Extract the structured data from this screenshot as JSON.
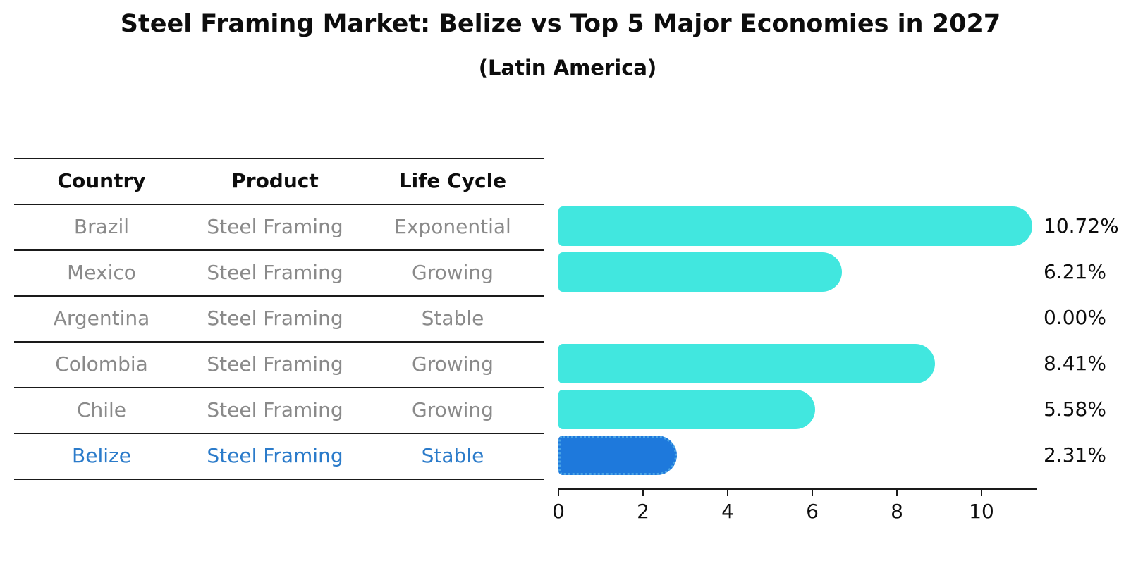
{
  "title": "Steel Framing Market: Belize vs Top 5 Major Economies in 2027",
  "subtitle": "(Latin America)",
  "table": {
    "headers": [
      "Country",
      "Product",
      "Life Cycle"
    ],
    "rows": [
      {
        "country": "Brazil",
        "product": "Steel Framing",
        "life_cycle": "Exponential",
        "highlight": false
      },
      {
        "country": "Mexico",
        "product": "Steel Framing",
        "life_cycle": "Growing",
        "highlight": false
      },
      {
        "country": "Argentina",
        "product": "Steel Framing",
        "life_cycle": "Stable",
        "highlight": false
      },
      {
        "country": "Colombia",
        "product": "Steel Framing",
        "life_cycle": "Growing",
        "highlight": false
      },
      {
        "country": "Chile",
        "product": "Steel Framing",
        "life_cycle": "Growing",
        "highlight": false
      },
      {
        "country": "Belize",
        "product": "Steel Framing",
        "life_cycle": "Stable",
        "highlight": true
      }
    ]
  },
  "chart_data": {
    "type": "bar",
    "orientation": "horizontal",
    "categories": [
      "Brazil",
      "Mexico",
      "Argentina",
      "Colombia",
      "Chile",
      "Belize"
    ],
    "values": [
      10.72,
      6.21,
      0.0,
      8.41,
      5.58,
      2.31
    ],
    "value_labels": [
      "10.72%",
      "6.21%",
      "0.00%",
      "8.41%",
      "5.58%",
      "2.31%"
    ],
    "value_suffix": "%",
    "x_ticks": [
      0,
      2,
      4,
      6,
      8,
      10
    ],
    "xlim": [
      0,
      11.3
    ],
    "grid": false,
    "legend": "none",
    "bar_color": "#41e7df",
    "highlight_bar_color": "#1e79dc",
    "highlight_text_color": "#2b7bca",
    "highlight_index": 5
  }
}
